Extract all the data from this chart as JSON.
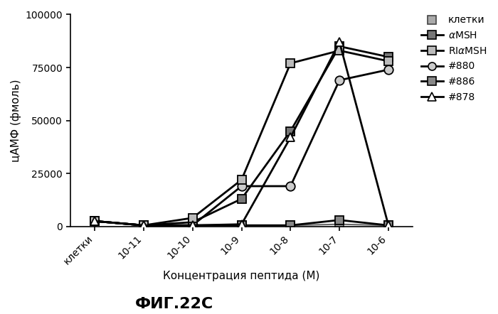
{
  "title": "ФИГ.22С",
  "xlabel": "Концентрация пептида (М)",
  "ylabel": "цАМФ (фмоль)",
  "x_tick_labels": [
    "клетки",
    "10-11",
    "10-10",
    "10-9",
    "10-8",
    "10-7",
    "10-6"
  ],
  "x_positions": [
    0,
    1,
    2,
    3,
    4,
    5,
    6
  ],
  "ylim": [
    0,
    100000
  ],
  "yticks": [
    0,
    25000,
    50000,
    75000,
    100000
  ],
  "ytick_labels": [
    "0",
    "25000",
    "50000",
    "75000",
    "100000"
  ],
  "series": {
    "клетки": {
      "x": [
        0,
        1,
        2,
        3,
        4,
        5,
        6
      ],
      "y": [
        2500,
        500,
        500,
        500,
        500,
        1000,
        500
      ],
      "color": "#666666",
      "marker": "s",
      "ms": 8,
      "mfc": "#aaaaaa",
      "mec": "#444444",
      "lw": 1.5,
      "zorder": 2
    },
    "alphaMSH": {
      "x": [
        0,
        1,
        2,
        3,
        4,
        5,
        6
      ],
      "y": [
        2500,
        500,
        2000,
        13000,
        45000,
        85000,
        80000
      ],
      "color": "#000000",
      "marker": "s",
      "ms": 9,
      "mfc": "#777777",
      "mec": "#000000",
      "lw": 2.0,
      "zorder": 4
    },
    "RIalphaMSH": {
      "x": [
        0,
        1,
        2,
        3,
        4,
        5,
        6
      ],
      "y": [
        2500,
        500,
        4000,
        22000,
        77000,
        83000,
        78000
      ],
      "color": "#000000",
      "marker": "s",
      "ms": 9,
      "mfc": "#bbbbbb",
      "mec": "#000000",
      "lw": 2.0,
      "zorder": 5
    },
    "880": {
      "x": [
        0,
        1,
        2,
        3,
        4,
        5,
        6
      ],
      "y": [
        2500,
        500,
        500,
        19000,
        19000,
        69000,
        74000
      ],
      "color": "#000000",
      "marker": "o",
      "ms": 9,
      "mfc": "#cccccc",
      "mec": "#000000",
      "lw": 2.0,
      "zorder": 3
    },
    "886": {
      "x": [
        0,
        1,
        2,
        3,
        4,
        5,
        6
      ],
      "y": [
        2500,
        500,
        500,
        500,
        500,
        3000,
        500
      ],
      "color": "#000000",
      "marker": "s",
      "ms": 9,
      "mfc": "#888888",
      "mec": "#000000",
      "lw": 2.0,
      "zorder": 2
    },
    "878": {
      "x": [
        0,
        1,
        2,
        3,
        4,
        5,
        6
      ],
      "y": [
        2500,
        500,
        500,
        1000,
        42000,
        87000,
        500
      ],
      "color": "#000000",
      "marker": "^",
      "ms": 9,
      "mfc": "#ffffff",
      "mec": "#000000",
      "lw": 2.0,
      "zorder": 6
    }
  },
  "background_color": "#ffffff",
  "title_fontsize": 16,
  "axis_fontsize": 11,
  "tick_fontsize": 10,
  "legend_fontsize": 10
}
